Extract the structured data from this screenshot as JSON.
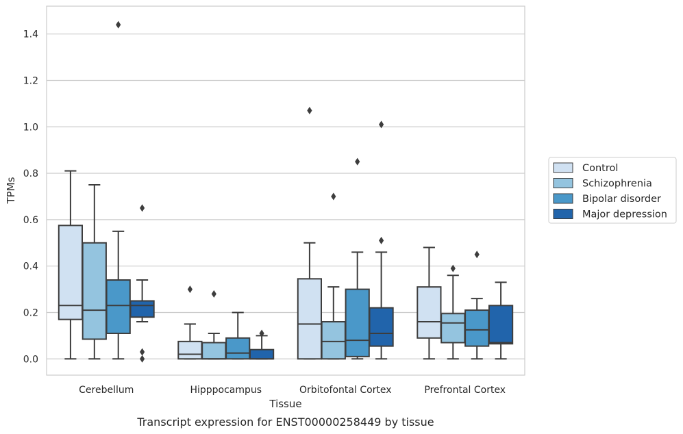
{
  "chart_data": {
    "type": "box",
    "xlabel": "Tissue",
    "ylabel": "TPMs",
    "caption": "Transcript expression for ENST00000258449 by tissue",
    "categories": [
      "Cerebellum",
      "Hipppocampus",
      "Orbitofontal Cortex",
      "Prefrontal Cortex"
    ],
    "ylim": [
      -0.07,
      1.52
    ],
    "yticks": [
      0.0,
      0.2,
      0.4,
      0.6,
      0.8,
      1.0,
      1.2,
      1.4
    ],
    "ytick_labels": [
      "0.0",
      "0.2",
      "0.4",
      "0.6",
      "0.8",
      "1.0",
      "1.2",
      "1.4"
    ],
    "grid": "horizontal",
    "legend_position": "right",
    "series": [
      {
        "name": "Control",
        "color": "#d0e1f2",
        "boxes": [
          {
            "whislo": 0.0,
            "q1": 0.17,
            "med": 0.23,
            "q3": 0.575,
            "whishi": 0.81,
            "fliers": []
          },
          {
            "whislo": 0.0,
            "q1": 0.0,
            "med": 0.02,
            "q3": 0.075,
            "whishi": 0.15,
            "fliers": [
              0.3
            ]
          },
          {
            "whislo": 0.0,
            "q1": 0.0,
            "med": 0.15,
            "q3": 0.345,
            "whishi": 0.5,
            "fliers": [
              1.07
            ]
          },
          {
            "whislo": 0.0,
            "q1": 0.09,
            "med": 0.16,
            "q3": 0.31,
            "whishi": 0.48,
            "fliers": []
          }
        ]
      },
      {
        "name": "Schizophrenia",
        "color": "#94c4df",
        "boxes": [
          {
            "whislo": 0.0,
            "q1": 0.085,
            "med": 0.21,
            "q3": 0.5,
            "whishi": 0.75,
            "fliers": []
          },
          {
            "whislo": 0.0,
            "q1": 0.0,
            "med": 0.0,
            "q3": 0.07,
            "whishi": 0.11,
            "fliers": [
              0.28
            ]
          },
          {
            "whislo": 0.0,
            "q1": 0.0,
            "med": 0.075,
            "q3": 0.16,
            "whishi": 0.31,
            "fliers": [
              0.7
            ]
          },
          {
            "whislo": 0.0,
            "q1": 0.07,
            "med": 0.155,
            "q3": 0.195,
            "whishi": 0.36,
            "fliers": [
              0.39
            ]
          }
        ]
      },
      {
        "name": "Bipolar disorder",
        "color": "#4a98c9",
        "boxes": [
          {
            "whislo": 0.0,
            "q1": 0.11,
            "med": 0.23,
            "q3": 0.34,
            "whishi": 0.55,
            "fliers": [
              1.44
            ]
          },
          {
            "whislo": 0.0,
            "q1": 0.0,
            "med": 0.025,
            "q3": 0.09,
            "whishi": 0.2,
            "fliers": []
          },
          {
            "whislo": 0.0,
            "q1": 0.01,
            "med": 0.08,
            "q3": 0.3,
            "whishi": 0.46,
            "fliers": [
              0.85
            ]
          },
          {
            "whislo": 0.0,
            "q1": 0.055,
            "med": 0.125,
            "q3": 0.21,
            "whishi": 0.26,
            "fliers": [
              0.45
            ]
          }
        ]
      },
      {
        "name": "Major depression",
        "color": "#2164ab",
        "boxes": [
          {
            "whislo": 0.16,
            "q1": 0.18,
            "med": 0.23,
            "q3": 0.25,
            "whishi": 0.34,
            "fliers": [
              0.65,
              0.03,
              0.0
            ]
          },
          {
            "whislo": 0.0,
            "q1": 0.0,
            "med": 0.0,
            "q3": 0.04,
            "whishi": 0.1,
            "fliers": [
              0.11
            ]
          },
          {
            "whislo": 0.0,
            "q1": 0.055,
            "med": 0.11,
            "q3": 0.22,
            "whishi": 0.46,
            "fliers": [
              1.01,
              0.51
            ]
          },
          {
            "whislo": 0.0,
            "q1": 0.065,
            "med": 0.07,
            "q3": 0.23,
            "whishi": 0.33,
            "fliers": []
          }
        ]
      }
    ]
  }
}
